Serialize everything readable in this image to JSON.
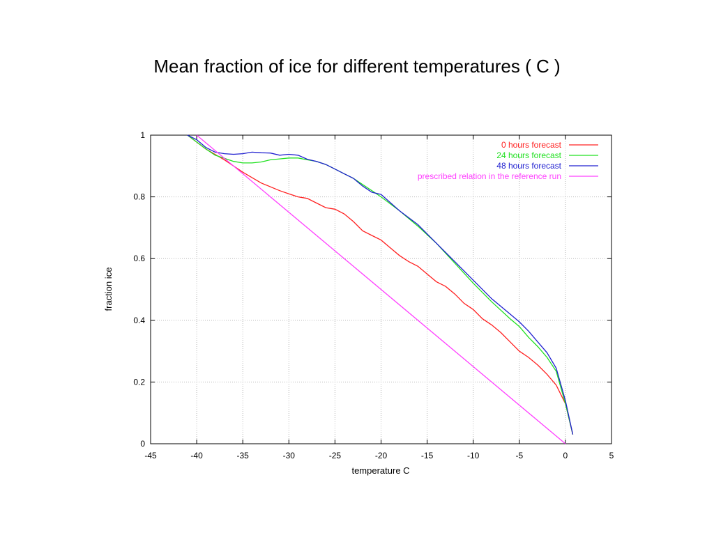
{
  "title": "Mean fraction of ice for different temperatures ( C )",
  "chart_data": {
    "type": "line",
    "xlabel": "temperature C",
    "ylabel": "fraction ice",
    "xlim": [
      -45,
      5
    ],
    "ylim": [
      0,
      1
    ],
    "xticks": [
      -45,
      -40,
      -35,
      -30,
      -25,
      -20,
      -15,
      -10,
      -5,
      0,
      5
    ],
    "yticks": [
      0,
      0.2,
      0.4,
      0.6,
      0.8,
      1
    ],
    "grid": true,
    "legend_position": "top-right",
    "series": [
      {
        "name": "0  hours forecast",
        "color": "#ff2020",
        "x": [
          -41,
          -39,
          -37,
          -35,
          -33,
          -31,
          -30,
          -29,
          -28,
          -27,
          -26,
          -25,
          -24,
          -23,
          -22,
          -21,
          -20,
          -19,
          -18,
          -17,
          -16,
          -15,
          -14,
          -13,
          -12,
          -11,
          -10,
          -9,
          -8,
          -7,
          -6,
          -5,
          -4,
          -3,
          -2,
          -1,
          0,
          0.8
        ],
        "y": [
          1.0,
          0.955,
          0.92,
          0.88,
          0.845,
          0.82,
          0.81,
          0.8,
          0.795,
          0.78,
          0.765,
          0.76,
          0.745,
          0.72,
          0.69,
          0.675,
          0.66,
          0.635,
          0.61,
          0.59,
          0.575,
          0.55,
          0.525,
          0.51,
          0.485,
          0.455,
          0.435,
          0.405,
          0.385,
          0.36,
          0.33,
          0.3,
          0.28,
          0.255,
          0.225,
          0.19,
          0.13,
          0.03
        ]
      },
      {
        "name": "24 hours forecast",
        "color": "#20e020",
        "x": [
          -41,
          -39,
          -38,
          -37,
          -36,
          -35,
          -34,
          -33,
          -32,
          -31,
          -30,
          -29,
          -28,
          -27,
          -26,
          -25,
          -24,
          -23,
          -22,
          -21,
          -20,
          -18,
          -16,
          -14,
          -12,
          -10,
          -8,
          -6,
          -5,
          -4,
          -3,
          -2,
          -1,
          0,
          0.8
        ],
        "y": [
          1.0,
          0.955,
          0.935,
          0.925,
          0.915,
          0.91,
          0.91,
          0.913,
          0.92,
          0.923,
          0.926,
          0.926,
          0.92,
          0.915,
          0.905,
          0.89,
          0.875,
          0.86,
          0.84,
          0.82,
          0.8,
          0.755,
          0.705,
          0.65,
          0.585,
          0.52,
          0.46,
          0.405,
          0.38,
          0.345,
          0.315,
          0.28,
          0.235,
          0.13,
          0.03
        ]
      },
      {
        "name": "48 hours forecast",
        "color": "#2020d0",
        "x": [
          -41,
          -40,
          -39,
          -38,
          -37,
          -36,
          -35,
          -34,
          -33,
          -32,
          -31,
          -30,
          -29,
          -28,
          -27,
          -26,
          -25,
          -24,
          -23,
          -22,
          -21,
          -20,
          -18,
          -16,
          -14,
          -12,
          -10,
          -8,
          -6,
          -5,
          -4,
          -3,
          -2,
          -1,
          0,
          0.8
        ],
        "y": [
          1.0,
          0.985,
          0.96,
          0.945,
          0.94,
          0.938,
          0.94,
          0.945,
          0.943,
          0.942,
          0.935,
          0.938,
          0.935,
          0.922,
          0.915,
          0.905,
          0.89,
          0.875,
          0.86,
          0.835,
          0.815,
          0.808,
          0.755,
          0.71,
          0.65,
          0.59,
          0.53,
          0.47,
          0.42,
          0.395,
          0.365,
          0.33,
          0.295,
          0.245,
          0.14,
          0.03
        ]
      },
      {
        "name": "prescribed relation in the reference run",
        "color": "#ff40ff",
        "x": [
          -40,
          0
        ],
        "y": [
          1.0,
          0.0
        ]
      }
    ]
  }
}
